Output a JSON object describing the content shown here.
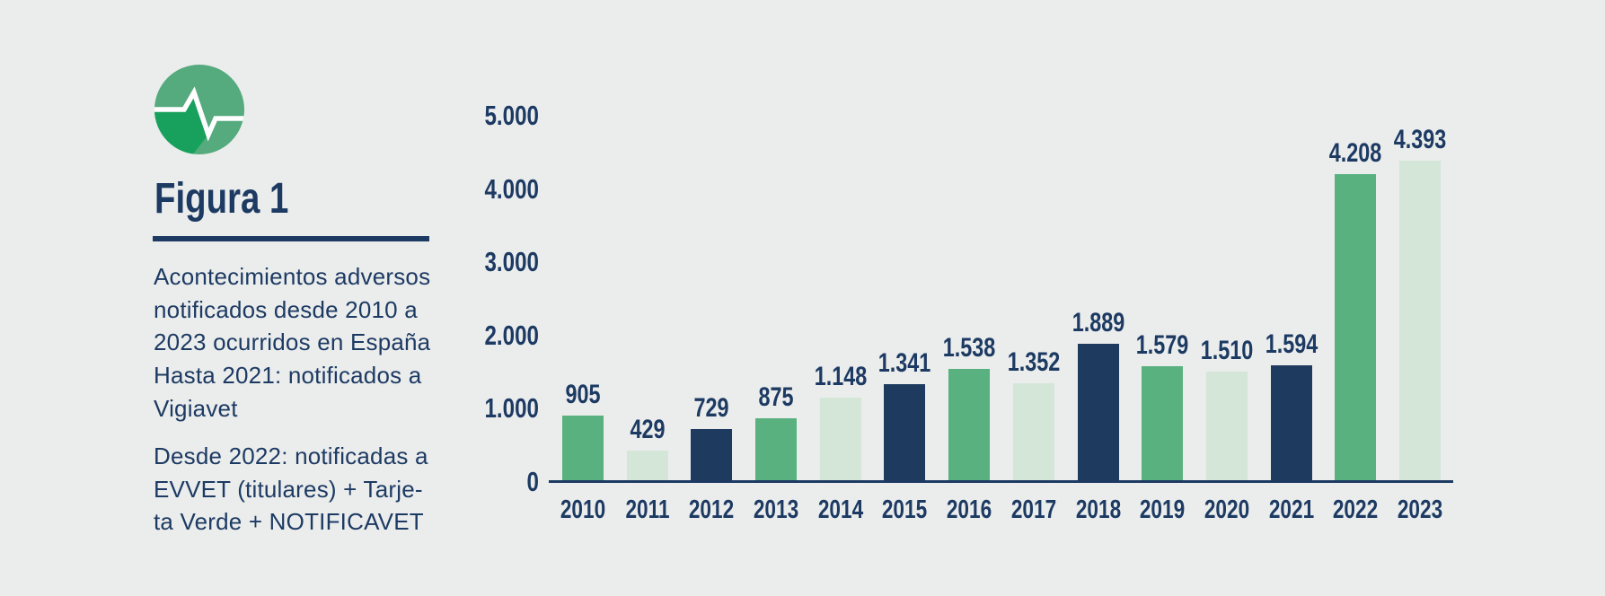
{
  "figure": {
    "label": "Figura 1",
    "description": "Acontecimientos adversos\nnotificados desde 2010 a\n2023 ocurridos en España",
    "note_vigiavet": "Hasta 2021: notificados a\nVigiavet",
    "note_evvet": "Desde 2022: notificadas a\nEVVET (titulares) + Tarje-\nta Verde + NOTIFICAVET"
  },
  "icon": {
    "name": "pulse-icon",
    "main_color": "#55aa7e",
    "shadow_color": "#18a15d",
    "line_color": "#ffffff"
  },
  "colors": {
    "background": "#ebedec",
    "text_navy": "#1d3a63",
    "bar_green": "#58b17e",
    "bar_light_green": "#d3e6d8",
    "bar_navy": "#1e3a5f"
  },
  "chart_data": {
    "type": "bar",
    "title": "",
    "xlabel": "",
    "ylabel": "",
    "grid": false,
    "legend": false,
    "ylim": [
      0,
      5000
    ],
    "categories": [
      "2010",
      "2011",
      "2012",
      "2013",
      "2014",
      "2015",
      "2016",
      "2017",
      "2018",
      "2019",
      "2020",
      "2021",
      "2022",
      "2023"
    ],
    "values": [
      905,
      429,
      729,
      875,
      1148,
      1341,
      1538,
      1352,
      1889,
      1579,
      1510,
      1594,
      4208,
      4393
    ],
    "value_labels": [
      "905",
      "429",
      "729",
      "875",
      "1.148",
      "1.341",
      "1.538",
      "1.352",
      "1.889",
      "1.579",
      "1.510",
      "1.594",
      "4.208",
      "4.393"
    ],
    "bar_color_keys": [
      "bar_green",
      "bar_light_green",
      "bar_navy",
      "bar_green",
      "bar_light_green",
      "bar_navy",
      "bar_green",
      "bar_light_green",
      "bar_navy",
      "bar_green",
      "bar_light_green",
      "bar_navy",
      "bar_green",
      "bar_light_green"
    ],
    "y_ticks": [
      {
        "value": 5000,
        "label": "5.000"
      },
      {
        "value": 4000,
        "label": "4.000"
      },
      {
        "value": 3000,
        "label": "3.000"
      },
      {
        "value": 2000,
        "label": "2.000"
      },
      {
        "value": 1000,
        "label": "1.000"
      },
      {
        "value": 0,
        "label": "0"
      }
    ]
  }
}
